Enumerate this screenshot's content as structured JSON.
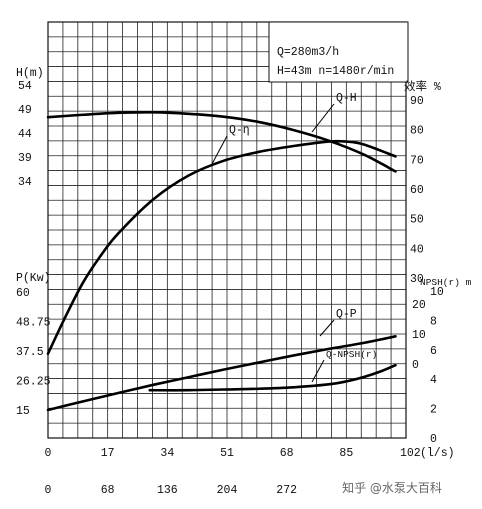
{
  "chart_data": {
    "type": "line",
    "title": "",
    "info_box": [
      "Q=280m3/h",
      "H=43m  n=1480r/min"
    ],
    "x_axis": {
      "label": "(l/s)",
      "range": [
        0,
        102
      ],
      "ticks": [
        "0",
        "17",
        "34",
        "51",
        "68",
        "85",
        "102"
      ]
    },
    "x_axis_secondary": {
      "ticks": [
        "0",
        "68",
        "136",
        "204",
        "272"
      ]
    },
    "y_axes": {
      "head": {
        "label": "H(m)",
        "range": [
          29,
          54
        ],
        "ticks": [
          "54",
          "49",
          "44",
          "39",
          "34"
        ]
      },
      "power": {
        "label": "P(Kw)",
        "range": [
          15,
          60
        ],
        "ticks": [
          "60",
          "48.75",
          "37.5",
          "26.25",
          "15"
        ]
      },
      "efficiency": {
        "label": "效率 %",
        "range": [
          0,
          90
        ],
        "ticks": [
          "90",
          "80",
          "70",
          "60",
          "50",
          "40",
          "30"
        ]
      },
      "npsh": {
        "label": "NPSH(r) m",
        "range": [
          0,
          10
        ],
        "ticks": [
          "10",
          "8",
          "6",
          "4",
          "2",
          "0"
        ],
        "extra_ticks": [
          "20",
          "10",
          "0"
        ]
      }
    },
    "grid": true,
    "series": [
      {
        "name": "Q-H",
        "axis": "head",
        "x": [
          0,
          10,
          20,
          30,
          40,
          50,
          60,
          70,
          80,
          90,
          99
        ],
        "y": [
          47.3,
          47.8,
          48.2,
          48.3,
          48.0,
          47.4,
          46.3,
          44.6,
          42.4,
          39.5,
          36.0
        ]
      },
      {
        "name": "Q-η",
        "axis": "efficiency",
        "x": [
          0,
          5,
          10,
          15,
          20,
          30,
          40,
          50,
          60,
          70,
          80,
          85,
          90,
          99
        ],
        "y": [
          4.5,
          17,
          28.5,
          37.5,
          45,
          56.5,
          64.5,
          69.5,
          72.5,
          74.5,
          76,
          76,
          75,
          71
        ]
      },
      {
        "name": "Q-P",
        "axis": "power",
        "x": [
          0,
          10,
          20,
          30,
          40,
          50,
          60,
          70,
          80,
          90,
          99
        ],
        "y": [
          15.0,
          18.3,
          21.5,
          24.6,
          27.5,
          30.4,
          33.1,
          35.8,
          38.3,
          40.6,
          43.1
        ]
      },
      {
        "name": "Q-NPSH(r)",
        "axis": "npsh",
        "x": [
          29,
          40,
          50,
          60,
          70,
          80,
          85,
          90,
          95,
          99
        ],
        "y": [
          3.25,
          3.25,
          3.3,
          3.35,
          3.45,
          3.65,
          3.85,
          4.15,
          4.55,
          4.95
        ]
      }
    ]
  },
  "watermark": "知乎 @水泵大百科"
}
